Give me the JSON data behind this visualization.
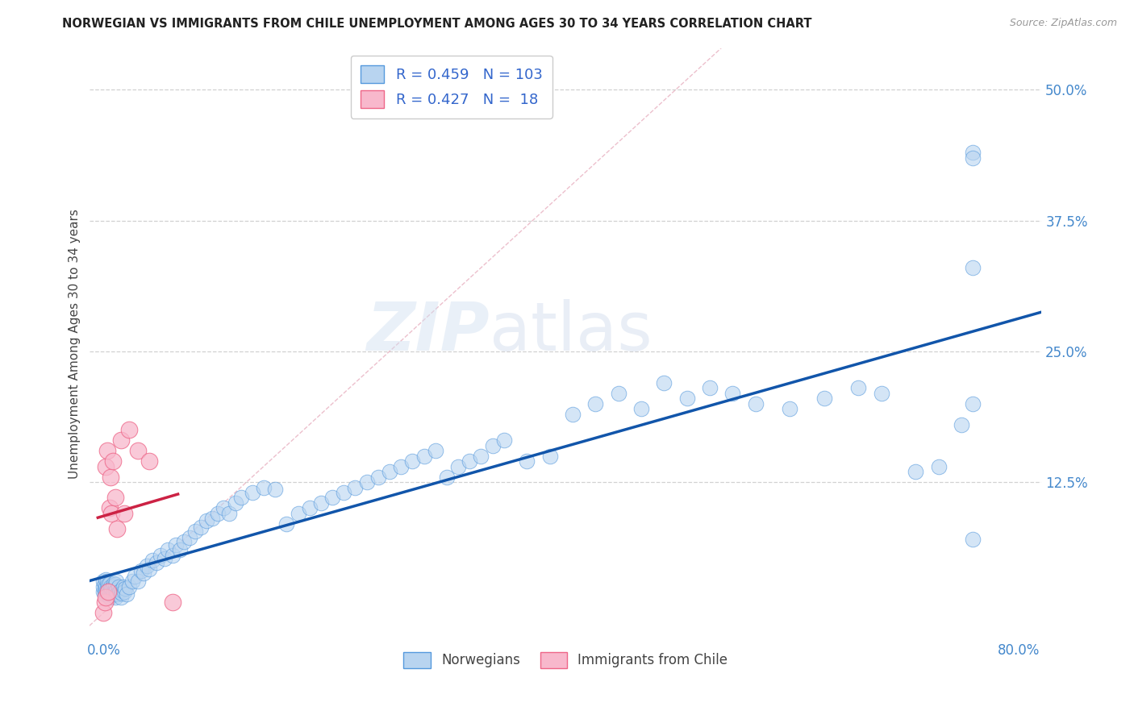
{
  "title": "NORWEGIAN VS IMMIGRANTS FROM CHILE UNEMPLOYMENT AMONG AGES 30 TO 34 YEARS CORRELATION CHART",
  "source": "Source: ZipAtlas.com",
  "ylabel": "Unemployment Among Ages 30 to 34 years",
  "xlim": [
    -0.012,
    0.82
  ],
  "ylim": [
    -0.025,
    0.54
  ],
  "xticks": [
    0.0,
    0.2,
    0.4,
    0.6,
    0.8
  ],
  "xticklabels": [
    "0.0%",
    "",
    "",
    "",
    "80.0%"
  ],
  "yticks": [
    0.125,
    0.25,
    0.375,
    0.5
  ],
  "yticklabels": [
    "12.5%",
    "25.0%",
    "37.5%",
    "50.0%"
  ],
  "norwegian_face_color": "#b8d4f0",
  "norwegian_edge_color": "#5599dd",
  "chile_face_color": "#f8b8cc",
  "chile_edge_color": "#ee6688",
  "trend_norwegian_color": "#1155aa",
  "trend_chile_color": "#cc2244",
  "diag_color": "#ddbbcc",
  "R_norwegian": "0.459",
  "N_norwegian": "103",
  "R_chile": "0.427",
  "N_chile": " 18",
  "watermark_zip": "ZIP",
  "watermark_atlas": "atlas",
  "background_color": "#ffffff",
  "grid_color": "#cccccc",
  "norwegians_label": "Norwegians",
  "chile_label": "Immigrants from Chile",
  "title_color": "#222222",
  "source_color": "#999999",
  "tick_color": "#4488cc",
  "ylabel_color": "#444444"
}
